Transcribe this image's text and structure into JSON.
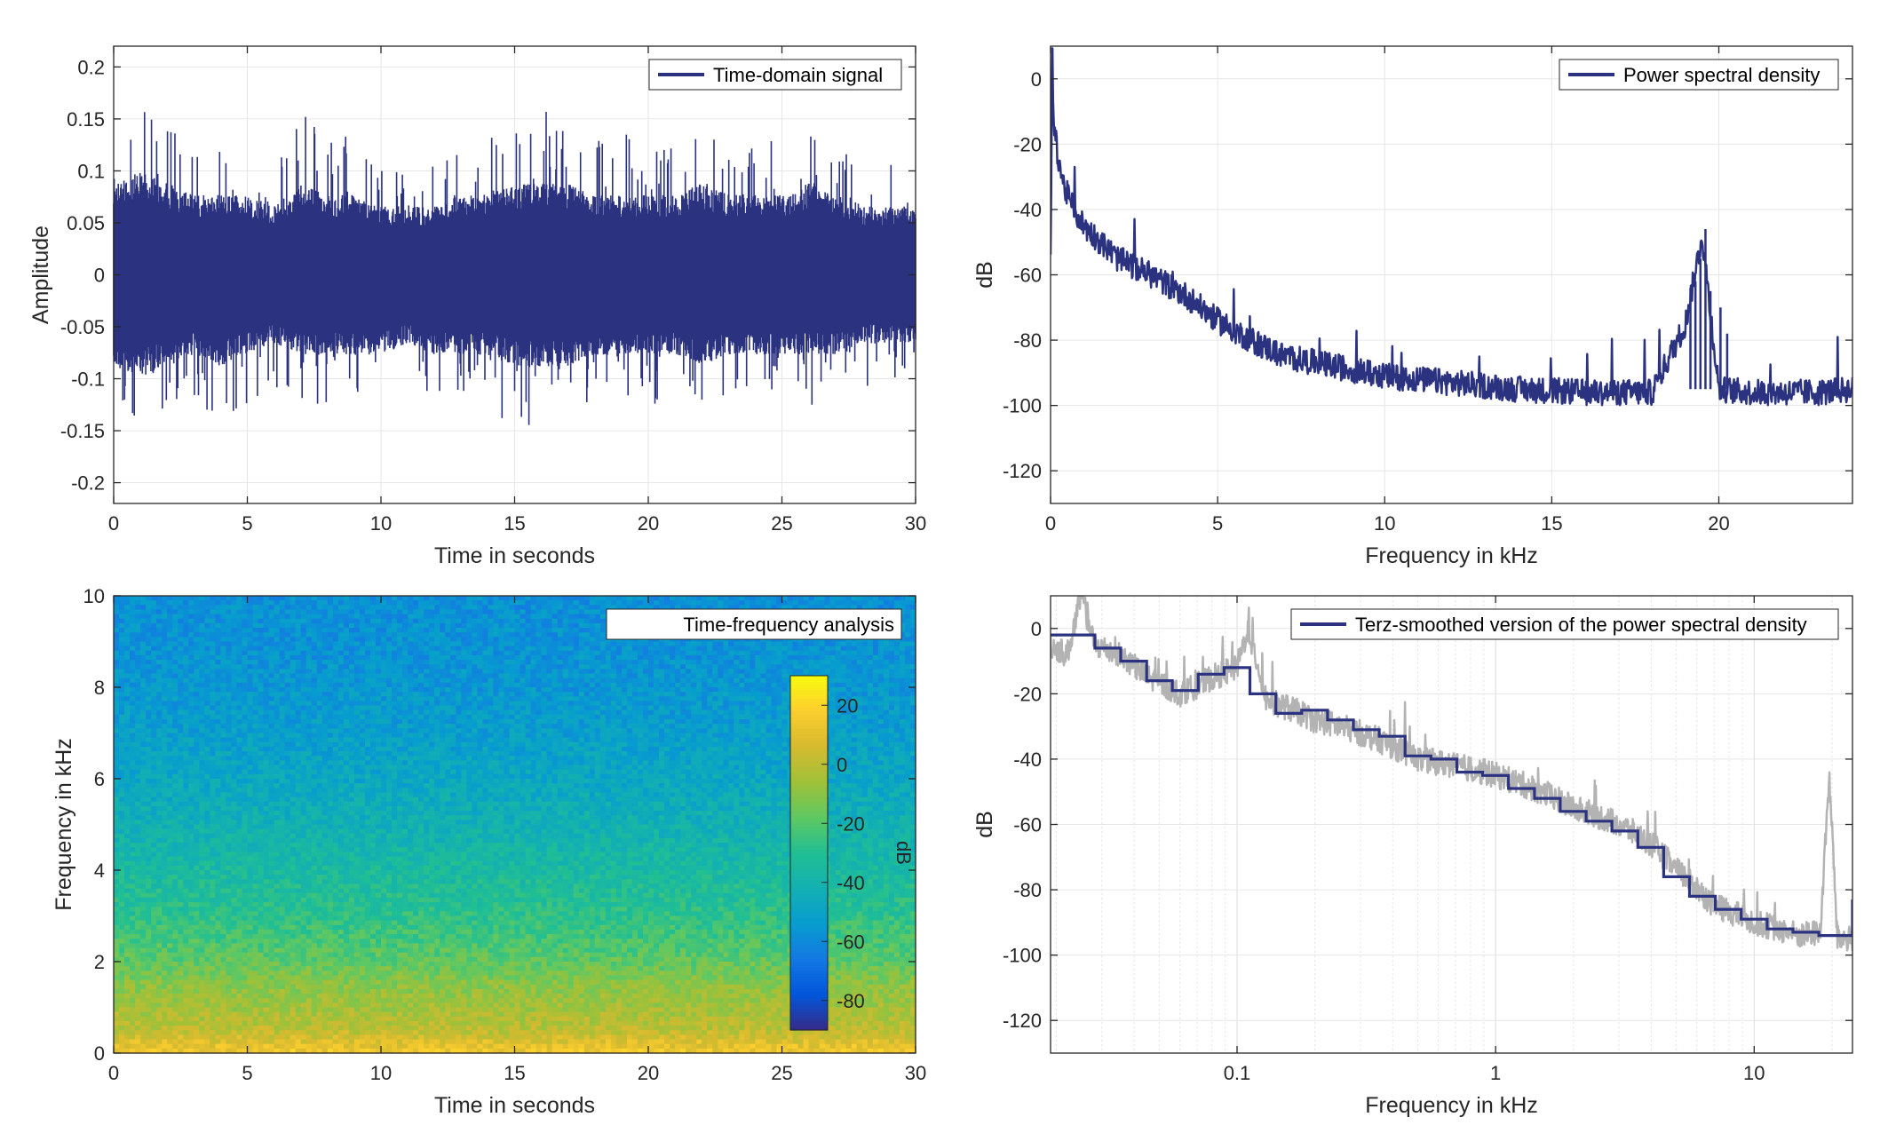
{
  "colors": {
    "series": "#2b3280",
    "raw": "#b3b3b3",
    "grid": "#e6e6e6",
    "axis": "#262626"
  },
  "chart_data": [
    {
      "type": "line",
      "panel": "top-left",
      "xlabel": "Time in seconds",
      "ylabel": "Amplitude",
      "xlim": [
        0,
        30
      ],
      "ylim": [
        -0.22,
        0.22
      ],
      "xticks": [
        0,
        5,
        10,
        15,
        20,
        25,
        30
      ],
      "xtick_labels": [
        "0",
        "5",
        "10",
        "15",
        "20",
        "25",
        "30"
      ],
      "yticks": [
        -0.2,
        -0.15,
        -0.1,
        -0.05,
        0,
        0.05,
        0.1,
        0.15,
        0.2
      ],
      "ytick_labels": [
        "-0.2",
        "-0.15",
        "-0.1",
        "-0.05",
        "0",
        "0.05",
        "0.1",
        "0.15",
        "0.2"
      ],
      "grid": true,
      "legend": "top-right",
      "series": [
        {
          "name": "Time-domain signal",
          "envelope_x": [
            0,
            1,
            2,
            3,
            4,
            5,
            6,
            7,
            8,
            9,
            10,
            11,
            12,
            13,
            14,
            15,
            16,
            17,
            18,
            19,
            20,
            21,
            22,
            23,
            24,
            25,
            26,
            27,
            28,
            29,
            30
          ],
          "envelope_max": [
            0.15,
            0.17,
            0.14,
            0.13,
            0.12,
            0.12,
            0.11,
            0.16,
            0.14,
            0.13,
            0.12,
            0.11,
            0.12,
            0.12,
            0.13,
            0.15,
            0.16,
            0.15,
            0.13,
            0.14,
            0.12,
            0.13,
            0.15,
            0.12,
            0.14,
            0.13,
            0.15,
            0.12,
            0.11,
            0.12,
            0.11
          ],
          "envelope_min": [
            -0.13,
            -0.15,
            -0.13,
            -0.12,
            -0.16,
            -0.13,
            -0.11,
            -0.12,
            -0.13,
            -0.12,
            -0.12,
            -0.11,
            -0.12,
            -0.13,
            -0.12,
            -0.16,
            -0.15,
            -0.13,
            -0.12,
            -0.12,
            -0.13,
            -0.12,
            -0.14,
            -0.11,
            -0.12,
            -0.12,
            -0.13,
            -0.12,
            -0.11,
            -0.1,
            -0.1
          ],
          "body_max": [
            0.08,
            0.09,
            0.08,
            0.07,
            0.07,
            0.07,
            0.06,
            0.08,
            0.07,
            0.07,
            0.06,
            0.06,
            0.06,
            0.07,
            0.07,
            0.08,
            0.08,
            0.08,
            0.07,
            0.07,
            0.07,
            0.07,
            0.08,
            0.07,
            0.07,
            0.07,
            0.08,
            0.07,
            0.06,
            0.06,
            0.06
          ],
          "body_min": [
            -0.08,
            -0.09,
            -0.08,
            -0.07,
            -0.08,
            -0.07,
            -0.06,
            -0.07,
            -0.07,
            -0.07,
            -0.07,
            -0.06,
            -0.07,
            -0.07,
            -0.07,
            -0.08,
            -0.08,
            -0.08,
            -0.07,
            -0.07,
            -0.07,
            -0.07,
            -0.08,
            -0.07,
            -0.07,
            -0.07,
            -0.07,
            -0.07,
            -0.06,
            -0.06,
            -0.06
          ]
        }
      ]
    },
    {
      "type": "line",
      "panel": "top-right",
      "xlabel": "Frequency in kHz",
      "ylabel": "dB",
      "xlim": [
        0,
        24
      ],
      "ylim": [
        -130,
        10
      ],
      "xticks": [
        0,
        5,
        10,
        15,
        20
      ],
      "xtick_labels": [
        "0",
        "5",
        "10",
        "15",
        "20"
      ],
      "yticks": [
        -120,
        -100,
        -80,
        -60,
        -40,
        -20,
        0
      ],
      "ytick_labels": [
        "-120",
        "-100",
        "-80",
        "-60",
        "-40",
        "-20",
        "0"
      ],
      "grid": true,
      "legend": "top-right",
      "series": [
        {
          "name": "Power spectral density",
          "x": [
            0,
            0.05,
            0.1,
            0.2,
            0.4,
            0.7,
            1,
            1.5,
            2,
            3,
            4,
            5,
            6,
            7,
            8,
            9,
            10,
            12,
            14,
            16,
            18,
            19,
            19.5,
            20,
            21,
            22,
            23,
            24
          ],
          "y": [
            -55,
            8,
            -15,
            -22,
            -33,
            -40,
            -45,
            -50,
            -55,
            -60,
            -66,
            -74,
            -80,
            -85,
            -87,
            -89,
            -91,
            -93,
            -95,
            -96,
            -96,
            -75,
            -48,
            -95,
            -96,
            -96,
            -96,
            -95
          ],
          "spread": 4
        }
      ]
    },
    {
      "type": "heatmap",
      "panel": "bottom-left",
      "xlabel": "Time in seconds",
      "ylabel": "Frequency in kHz",
      "xlim": [
        0,
        30
      ],
      "ylim": [
        0,
        10
      ],
      "xticks": [
        0,
        5,
        10,
        15,
        20,
        25,
        30
      ],
      "xtick_labels": [
        "0",
        "5",
        "10",
        "15",
        "20",
        "25",
        "30"
      ],
      "yticks": [
        0,
        2,
        4,
        6,
        8,
        10
      ],
      "ytick_labels": [
        "0",
        "2",
        "4",
        "6",
        "8",
        "10"
      ],
      "legend": "top-right",
      "legend_label": "Time-frequency analysis",
      "profile_freq_khz": [
        0,
        0.2,
        0.5,
        1,
        1.5,
        2,
        3,
        4,
        5,
        6,
        7,
        8,
        9,
        10
      ],
      "profile_db": [
        15,
        10,
        0,
        -5,
        -10,
        -18,
        -28,
        -35,
        -42,
        -48,
        -52,
        -55,
        -57,
        -58
      ],
      "colorbar": {
        "label": "dB",
        "limits": [
          -90,
          30
        ],
        "ticks": [
          -80,
          -60,
          -40,
          -20,
          0,
          20
        ],
        "tick_labels": [
          "-80",
          "-60",
          "-40",
          "-20",
          "0",
          "20"
        ],
        "colormap": "parula"
      }
    },
    {
      "type": "line",
      "panel": "bottom-right",
      "xlabel": "Frequency in kHz",
      "ylabel": "dB",
      "xscale": "log",
      "xlim": [
        0.019,
        24
      ],
      "ylim": [
        -130,
        10
      ],
      "xticks": [
        0.1,
        1,
        10
      ],
      "xtick_labels": [
        "0.1",
        "1",
        "10"
      ],
      "yticks": [
        -120,
        -100,
        -80,
        -60,
        -40,
        -20,
        0
      ],
      "ytick_labels": [
        "-120",
        "-100",
        "-80",
        "-60",
        "-40",
        "-20",
        "0"
      ],
      "grid": true,
      "legend": "top-right",
      "series": [
        {
          "name": "",
          "role": "raw",
          "x": [
            0.019,
            0.022,
            0.025,
            0.028,
            0.035,
            0.045,
            0.06,
            0.08,
            0.1,
            0.11,
            0.13,
            0.2,
            0.3,
            0.5,
            1,
            2,
            3,
            4,
            5,
            7,
            10,
            15,
            18,
            19.5,
            21,
            24
          ],
          "y": [
            -5,
            -8,
            10,
            -5,
            -8,
            -15,
            -20,
            -15,
            -12,
            0,
            -22,
            -28,
            -32,
            -40,
            -45,
            -55,
            -60,
            -66,
            -74,
            -85,
            -90,
            -94,
            -93,
            -45,
            -95,
            -95
          ],
          "spread": 4
        },
        {
          "name": "Terz-smoothed version of the power spectral density",
          "role": "smoothed",
          "x": [
            0.019,
            0.0282,
            0.0355,
            0.0447,
            0.0562,
            0.0708,
            0.0891,
            0.1122,
            0.1413,
            0.1778,
            0.2239,
            0.2818,
            0.3548,
            0.4467,
            0.5623,
            0.7079,
            0.8913,
            1.122,
            1.413,
            1.778,
            2.239,
            2.818,
            3.548,
            4.467,
            5.623,
            7.079,
            8.913,
            11.22,
            14.13,
            17.78,
            24
          ],
          "y": [
            -2,
            -6,
            -10,
            -16,
            -19,
            -14,
            -12,
            -20,
            -26,
            -25,
            -28,
            -31,
            -33,
            -39,
            -40,
            -44,
            -45,
            -49,
            -52,
            -56,
            -59,
            -62,
            -67,
            -76,
            -82,
            -86,
            -89,
            -92,
            -93,
            -94,
            -83
          ]
        }
      ]
    }
  ]
}
